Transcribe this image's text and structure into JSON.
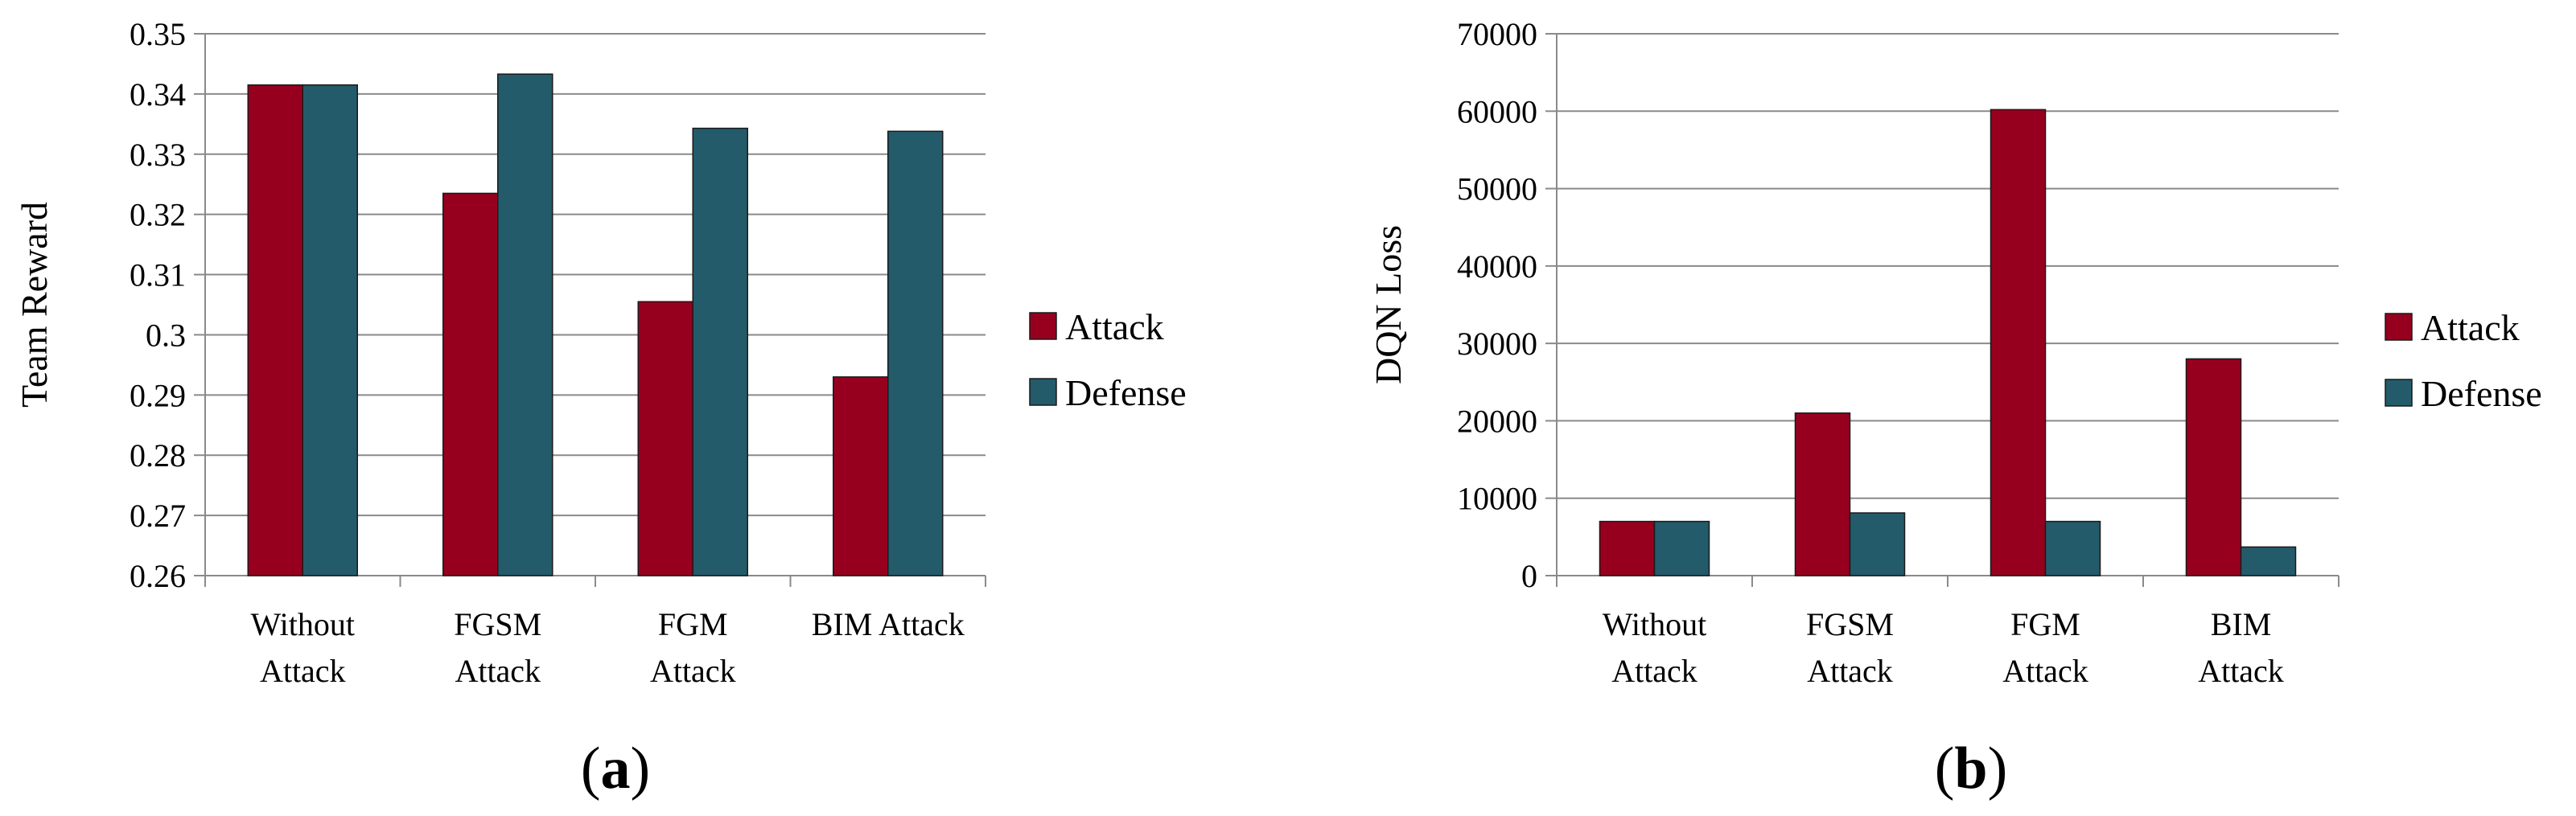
{
  "chart_data": [
    {
      "id": "a",
      "type": "bar",
      "categories": [
        [
          "Without",
          "Attack"
        ],
        [
          "FGSM",
          "Attack"
        ],
        [
          "FGM",
          "Attack"
        ],
        [
          "BIM Attack"
        ]
      ],
      "series": [
        {
          "name": "Attack",
          "color": "#96001e",
          "values": [
            0.3415,
            0.3235,
            0.3055,
            0.293
          ]
        },
        {
          "name": "Defense",
          "color": "#235b6b",
          "values": [
            0.3415,
            0.3433,
            0.3343,
            0.3338
          ]
        }
      ],
      "ylabel": "Team Reward",
      "xlabel": "",
      "ylim": [
        0.26,
        0.35
      ],
      "yticks": [
        "0.26",
        "0.27",
        "0.28",
        "0.29",
        "0.3",
        "0.31",
        "0.32",
        "0.33",
        "0.34",
        "0.35"
      ],
      "grid": true,
      "legend": "right",
      "caption_label": "a"
    },
    {
      "id": "b",
      "type": "bar",
      "categories": [
        [
          "Without",
          "Attack"
        ],
        [
          "FGSM",
          "Attack"
        ],
        [
          "FGM",
          "Attack"
        ],
        [
          "BIM",
          "Attack"
        ]
      ],
      "series": [
        {
          "name": "Attack",
          "color": "#96001e",
          "values": [
            7000,
            21000,
            60200,
            28000
          ]
        },
        {
          "name": "Defense",
          "color": "#235b6b",
          "values": [
            7000,
            8100,
            7000,
            3700
          ]
        }
      ],
      "ylabel": "DQN Loss",
      "xlabel": "",
      "ylim": [
        0,
        70000
      ],
      "yticks": [
        "0",
        "10000",
        "20000",
        "30000",
        "40000",
        "50000",
        "60000",
        "70000"
      ],
      "grid": true,
      "legend": "right",
      "caption_label": "b"
    }
  ]
}
